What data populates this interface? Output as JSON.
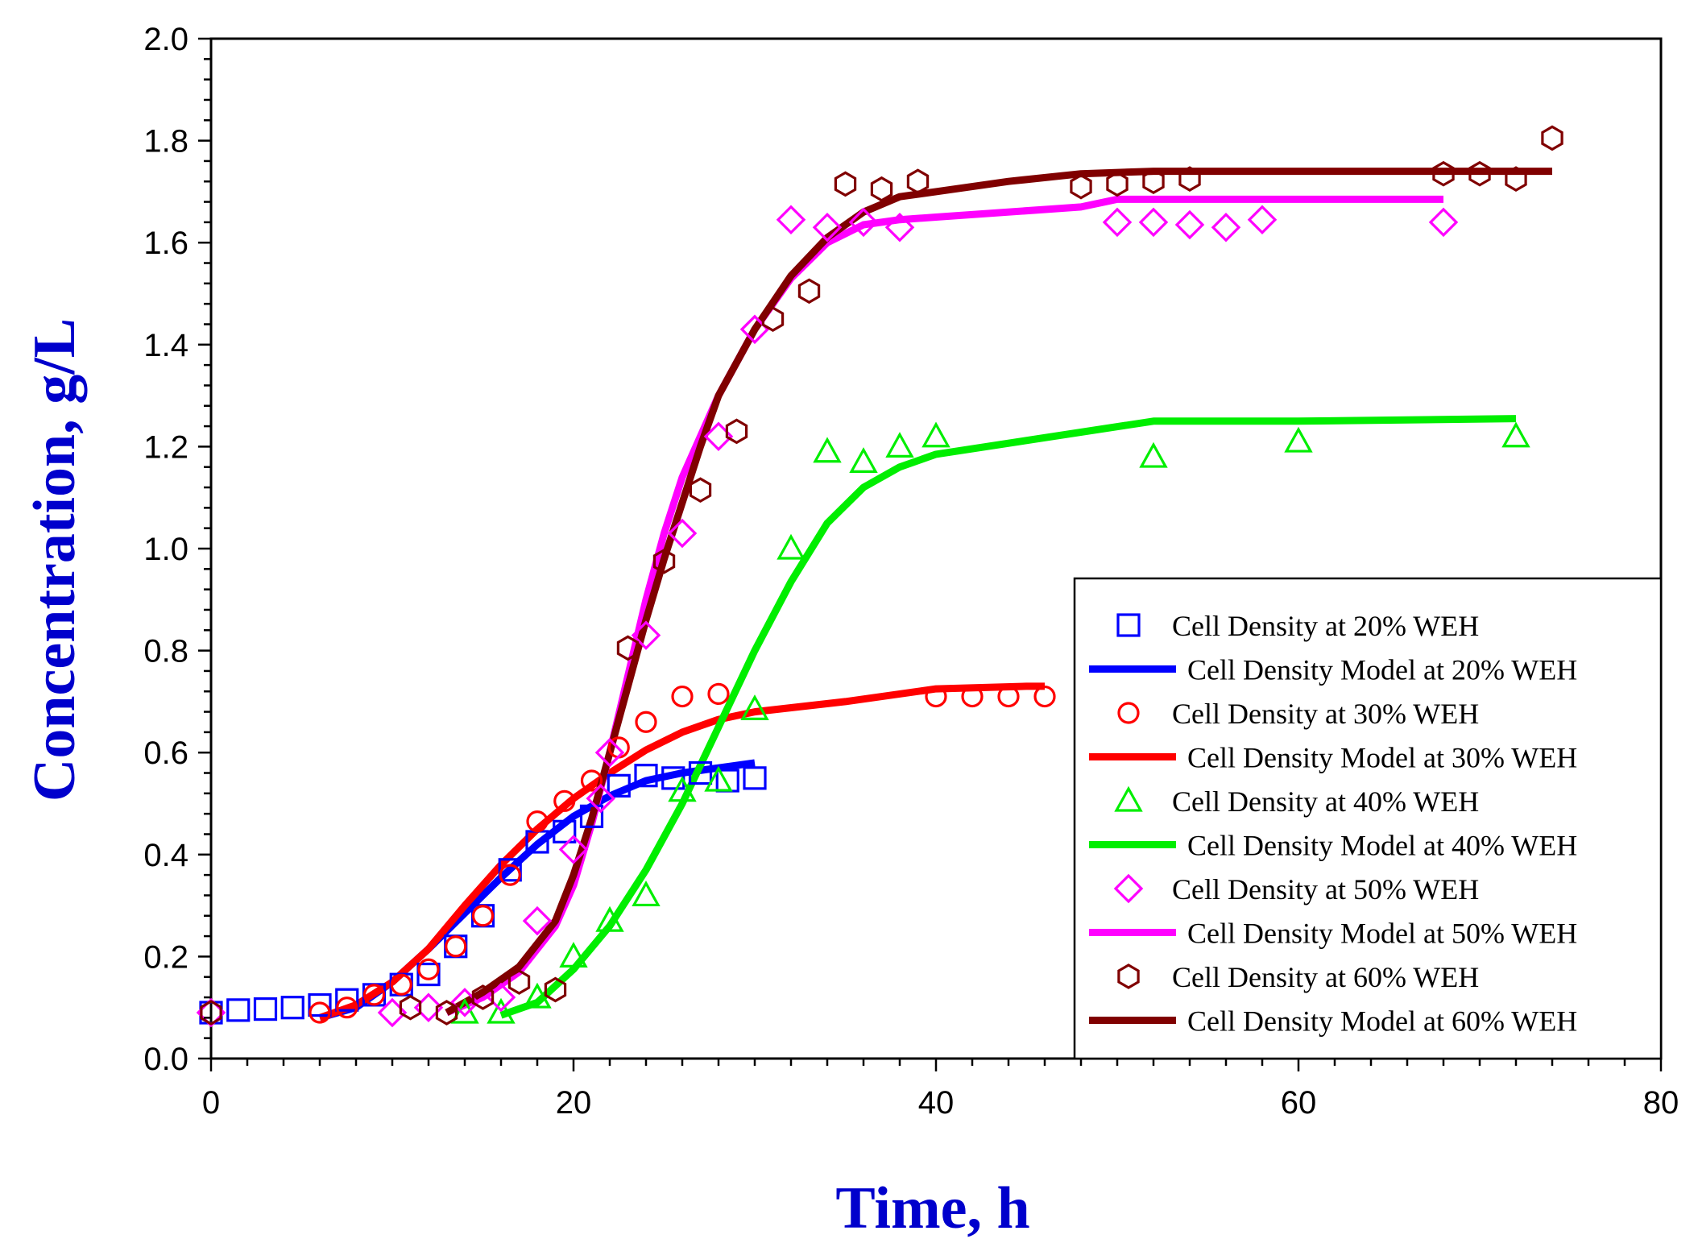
{
  "chart_data": {
    "type": "scatter",
    "title": "",
    "xlabel": "Time, h",
    "ylabel": "Concentration, g/L",
    "xlim": [
      0,
      80
    ],
    "ylim": [
      0,
      2.0
    ],
    "x_ticks": [
      "0",
      "20",
      "40",
      "60",
      "80"
    ],
    "x_tick_values": [
      0,
      20,
      40,
      60,
      80
    ],
    "y_ticks": [
      "0.0",
      "0.2",
      "0.4",
      "0.6",
      "0.8",
      "1.0",
      "1.2",
      "1.4",
      "1.6",
      "1.8",
      "2.0"
    ],
    "y_tick_values": [
      0,
      0.2,
      0.4,
      0.6,
      0.8,
      1.0,
      1.2,
      1.4,
      1.6,
      1.8,
      2.0
    ],
    "legend_position": "bottom-right",
    "series": [
      {
        "name": "Cell Density at 20% WEH",
        "kind": "markers",
        "marker": "square",
        "color": "#0000ff",
        "points": [
          [
            0,
            0.09
          ],
          [
            1.5,
            0.095
          ],
          [
            3,
            0.097
          ],
          [
            4.5,
            0.1
          ],
          [
            6,
            0.105
          ],
          [
            7.5,
            0.115
          ],
          [
            9,
            0.125
          ],
          [
            10.5,
            0.145
          ],
          [
            12,
            0.165
          ],
          [
            13.5,
            0.22
          ],
          [
            15,
            0.28
          ],
          [
            16.5,
            0.37
          ],
          [
            18,
            0.425
          ],
          [
            19.5,
            0.445
          ],
          [
            21,
            0.475
          ],
          [
            22.5,
            0.535
          ],
          [
            24,
            0.555
          ],
          [
            25.5,
            0.55
          ],
          [
            27,
            0.56
          ],
          [
            28.5,
            0.545
          ],
          [
            30,
            0.55
          ]
        ]
      },
      {
        "name": "Cell Density Model at 20% WEH",
        "kind": "line",
        "color": "#0000ff",
        "points": [
          [
            6,
            0.08
          ],
          [
            8,
            0.1
          ],
          [
            10,
            0.15
          ],
          [
            12,
            0.215
          ],
          [
            14,
            0.285
          ],
          [
            16,
            0.355
          ],
          [
            18,
            0.42
          ],
          [
            20,
            0.475
          ],
          [
            22,
            0.515
          ],
          [
            24,
            0.545
          ],
          [
            26,
            0.56
          ],
          [
            28,
            0.57
          ],
          [
            30,
            0.58
          ]
        ]
      },
      {
        "name": "Cell Density at 30% WEH",
        "kind": "markers",
        "marker": "circle",
        "color": "#ff0000",
        "points": [
          [
            6,
            0.09
          ],
          [
            7.5,
            0.1
          ],
          [
            9,
            0.125
          ],
          [
            10.5,
            0.145
          ],
          [
            12,
            0.175
          ],
          [
            13.5,
            0.22
          ],
          [
            15,
            0.28
          ],
          [
            16.5,
            0.36
          ],
          [
            18,
            0.465
          ],
          [
            19.5,
            0.505
          ],
          [
            21,
            0.545
          ],
          [
            22.5,
            0.61
          ],
          [
            24,
            0.66
          ],
          [
            26,
            0.71
          ],
          [
            28,
            0.715
          ],
          [
            40,
            0.71
          ],
          [
            42,
            0.71
          ],
          [
            44,
            0.71
          ],
          [
            46,
            0.71
          ]
        ]
      },
      {
        "name": "Cell Density Model at 30% WEH",
        "kind": "line",
        "color": "#ff0000",
        "points": [
          [
            6,
            0.08
          ],
          [
            8,
            0.105
          ],
          [
            10,
            0.15
          ],
          [
            12,
            0.215
          ],
          [
            14,
            0.3
          ],
          [
            16,
            0.38
          ],
          [
            18,
            0.45
          ],
          [
            20,
            0.51
          ],
          [
            22,
            0.56
          ],
          [
            24,
            0.605
          ],
          [
            26,
            0.64
          ],
          [
            28,
            0.665
          ],
          [
            30,
            0.68
          ],
          [
            35,
            0.7
          ],
          [
            40,
            0.725
          ],
          [
            45,
            0.73
          ],
          [
            46,
            0.73
          ]
        ]
      },
      {
        "name": "Cell Density at 40% WEH",
        "kind": "markers",
        "marker": "triangle",
        "color": "#00ee00",
        "points": [
          [
            14,
            0.09
          ],
          [
            16,
            0.09
          ],
          [
            18,
            0.12
          ],
          [
            20,
            0.2
          ],
          [
            22,
            0.27
          ],
          [
            24,
            0.32
          ],
          [
            26,
            0.525
          ],
          [
            28,
            0.545
          ],
          [
            30,
            0.685
          ],
          [
            32,
            1.0
          ],
          [
            34,
            1.19
          ],
          [
            36,
            1.17
          ],
          [
            38,
            1.2
          ],
          [
            40,
            1.22
          ],
          [
            52,
            1.18
          ],
          [
            60,
            1.21
          ],
          [
            72,
            1.22
          ]
        ]
      },
      {
        "name": "Cell Density Model at 40% WEH",
        "kind": "line",
        "color": "#00ee00",
        "points": [
          [
            16,
            0.085
          ],
          [
            18,
            0.11
          ],
          [
            20,
            0.175
          ],
          [
            22,
            0.26
          ],
          [
            24,
            0.37
          ],
          [
            26,
            0.5
          ],
          [
            28,
            0.65
          ],
          [
            30,
            0.8
          ],
          [
            32,
            0.935
          ],
          [
            34,
            1.05
          ],
          [
            36,
            1.12
          ],
          [
            38,
            1.16
          ],
          [
            40,
            1.185
          ],
          [
            52,
            1.25
          ],
          [
            60,
            1.25
          ],
          [
            72,
            1.255
          ]
        ]
      },
      {
        "name": "Cell Density at 50% WEH",
        "kind": "markers",
        "marker": "diamond",
        "color": "#ff00ff",
        "points": [
          [
            0,
            0.09
          ],
          [
            10,
            0.09
          ],
          [
            12,
            0.1
          ],
          [
            14,
            0.11
          ],
          [
            16,
            0.12
          ],
          [
            18,
            0.27
          ],
          [
            20,
            0.41
          ],
          [
            21.5,
            0.51
          ],
          [
            22,
            0.6
          ],
          [
            24,
            0.83
          ],
          [
            26,
            1.03
          ],
          [
            28,
            1.22
          ],
          [
            30,
            1.43
          ],
          [
            32,
            1.645
          ],
          [
            34,
            1.63
          ],
          [
            36,
            1.64
          ],
          [
            38,
            1.63
          ],
          [
            50,
            1.64
          ],
          [
            52,
            1.64
          ],
          [
            54,
            1.635
          ],
          [
            56,
            1.63
          ],
          [
            58,
            1.645
          ],
          [
            68,
            1.64
          ]
        ]
      },
      {
        "name": "Cell Density Model at 50% WEH",
        "kind": "line",
        "color": "#ff00ff",
        "points": [
          [
            13,
            0.09
          ],
          [
            15,
            0.12
          ],
          [
            17,
            0.17
          ],
          [
            19,
            0.26
          ],
          [
            20,
            0.34
          ],
          [
            21,
            0.46
          ],
          [
            22,
            0.6
          ],
          [
            23,
            0.75
          ],
          [
            24,
            0.9
          ],
          [
            25,
            1.03
          ],
          [
            26,
            1.14
          ],
          [
            28,
            1.3
          ],
          [
            30,
            1.43
          ],
          [
            32,
            1.53
          ],
          [
            34,
            1.6
          ],
          [
            36,
            1.635
          ],
          [
            38,
            1.645
          ],
          [
            40,
            1.65
          ],
          [
            48,
            1.67
          ],
          [
            50,
            1.685
          ],
          [
            68,
            1.685
          ]
        ]
      },
      {
        "name": "Cell Density at 60% WEH",
        "kind": "markers",
        "marker": "hexagon",
        "color": "#800000",
        "points": [
          [
            0,
            0.09
          ],
          [
            11,
            0.1
          ],
          [
            13,
            0.09
          ],
          [
            15,
            0.12
          ],
          [
            17,
            0.15
          ],
          [
            19,
            0.135
          ],
          [
            23,
            0.805
          ],
          [
            25,
            0.975
          ],
          [
            27,
            1.115
          ],
          [
            29,
            1.23
          ],
          [
            31,
            1.45
          ],
          [
            33,
            1.505
          ],
          [
            35,
            1.715
          ],
          [
            37,
            1.705
          ],
          [
            39,
            1.72
          ],
          [
            48,
            1.71
          ],
          [
            50,
            1.715
          ],
          [
            52,
            1.72
          ],
          [
            54,
            1.725
          ],
          [
            68,
            1.735
          ],
          [
            70,
            1.735
          ],
          [
            72,
            1.725
          ],
          [
            74,
            1.805
          ]
        ]
      },
      {
        "name": "Cell Density Model at 60% WEH",
        "kind": "line",
        "color": "#800000",
        "points": [
          [
            13,
            0.09
          ],
          [
            15,
            0.13
          ],
          [
            17,
            0.18
          ],
          [
            19,
            0.27
          ],
          [
            20,
            0.36
          ],
          [
            21,
            0.47
          ],
          [
            22,
            0.6
          ],
          [
            23,
            0.73
          ],
          [
            24,
            0.86
          ],
          [
            25,
            0.98
          ],
          [
            26,
            1.09
          ],
          [
            27,
            1.2
          ],
          [
            28,
            1.3
          ],
          [
            30,
            1.43
          ],
          [
            32,
            1.535
          ],
          [
            34,
            1.61
          ],
          [
            36,
            1.66
          ],
          [
            38,
            1.69
          ],
          [
            40,
            1.7
          ],
          [
            44,
            1.72
          ],
          [
            48,
            1.735
          ],
          [
            52,
            1.74
          ],
          [
            74,
            1.74
          ]
        ]
      }
    ]
  }
}
